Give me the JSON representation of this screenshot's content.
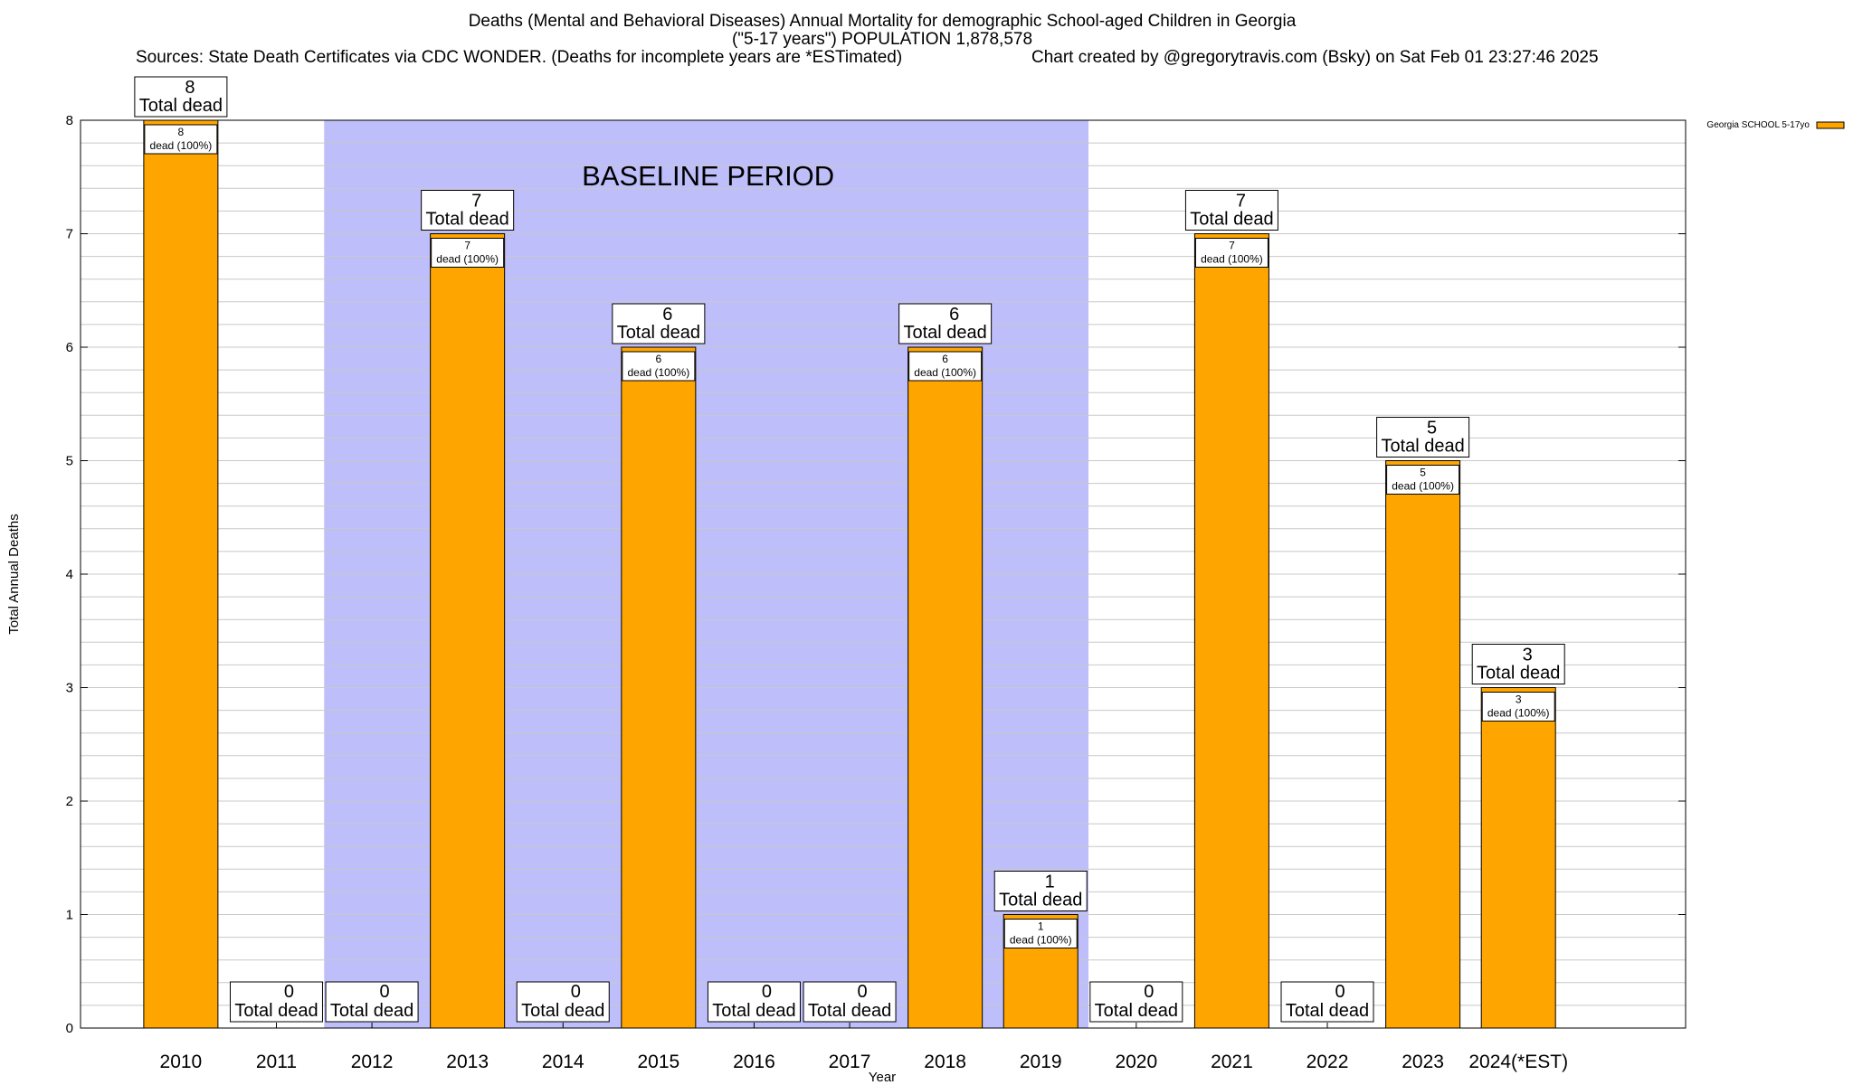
{
  "header": {
    "title": "Deaths (Mental and Behavioral Diseases) Annual Mortality for demographic School-aged Children in Georgia",
    "subtitle": "(\"5-17 years\") POPULATION 1,878,578",
    "sources": "Sources: State Death Certificates via CDC WONDER. (Deaths for incomplete years are *ESTimated)",
    "credit": "Chart created by @gregorytravis.com (Bsky) on Sat Feb 01 23:27:46 2025"
  },
  "colors": {
    "bar": "#FFA500",
    "baseline_band": "#BEBEFA",
    "grid": "#C8C8C8"
  },
  "chart_data": {
    "type": "bar",
    "title": "Deaths (Mental and Behavioral Diseases) Annual Mortality for demographic School-aged Children in Georgia",
    "xlabel": "Year",
    "ylabel": "Total Annual Deaths",
    "ylim": [
      0,
      8
    ],
    "yticks": [
      0,
      1,
      2,
      3,
      4,
      5,
      6,
      7,
      8
    ],
    "grid": true,
    "legend_position": "top-right",
    "categories": [
      "2010",
      "2011",
      "2012",
      "2013",
      "2014",
      "2015",
      "2016",
      "2017",
      "2018",
      "2019",
      "2020",
      "2021",
      "2022",
      "2023",
      "2024(*EST)"
    ],
    "series": [
      {
        "name": "Georgia SCHOOL 5-17yo",
        "values": [
          8,
          0,
          0,
          7,
          0,
          6,
          0,
          0,
          6,
          1,
          0,
          7,
          0,
          5,
          3
        ]
      }
    ],
    "total_label_suffix": "Total dead",
    "inner_label_suffix": "dead (100%)",
    "annotation": {
      "text": "BASELINE PERIOD",
      "range": [
        "2012",
        "2019"
      ]
    }
  }
}
